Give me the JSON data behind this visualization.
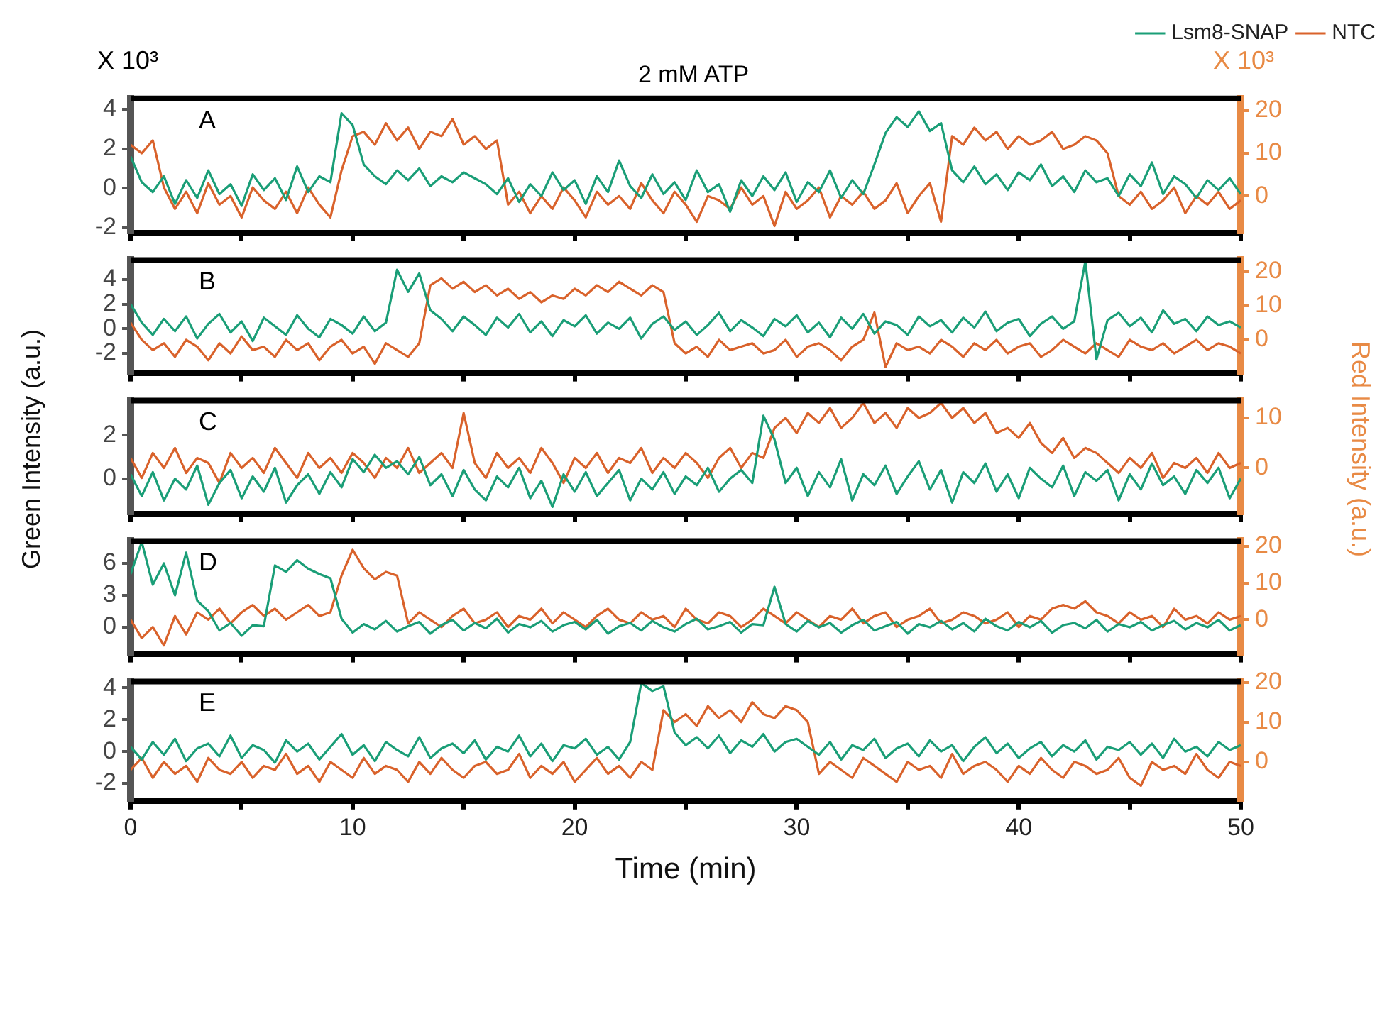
{
  "chart_data": [
    {
      "type": "line",
      "title": "2 mM ATP",
      "legend": "top right",
      "annotations": [
        "A",
        "X 10³",
        "X 10³"
      ],
      "tick_labels": "y",
      "x": [
        0,
        0.5,
        1,
        1.5,
        2,
        2.5,
        3,
        3.5,
        4,
        4.5,
        5,
        5.5,
        6,
        6.5,
        7,
        7.5,
        8,
        8.5,
        9,
        9.5,
        10,
        10.5,
        11,
        11.5,
        12,
        12.5,
        13,
        13.5,
        14,
        14.5,
        15,
        15.5,
        16,
        16.5,
        17,
        17.5,
        18,
        18.5,
        19,
        19.5,
        20,
        20.5,
        21,
        21.5,
        22,
        22.5,
        23,
        23.5,
        24,
        24.5,
        25,
        25.5,
        26,
        26.5,
        27,
        27.5,
        28,
        28.5,
        29,
        29.5,
        30,
        30.5,
        31,
        31.5,
        32,
        32.5,
        33,
        33.5,
        34,
        34.5,
        35,
        35.5,
        36,
        36.5,
        37,
        37.5,
        38,
        38.5,
        39,
        39.5,
        40,
        40.5,
        41,
        41.5,
        42,
        42.5,
        43,
        43.5,
        44,
        44.5,
        45,
        45.5,
        46,
        46.5,
        47,
        47.5,
        48,
        48.5,
        49,
        49.5,
        50
      ],
      "xlim": [
        0,
        50
      ],
      "xticks": [
        0,
        {
          "value": 5,
          "label": null
        },
        10,
        {
          "value": 15,
          "label": null
        },
        20,
        {
          "value": 25,
          "label": null
        },
        30,
        {
          "value": 35,
          "label": null
        },
        40,
        {
          "value": 45,
          "label": null
        },
        50
      ],
      "ylim": [
        -2.25,
        4.55
      ],
      "yticks": [
        -2,
        0,
        2,
        4
      ],
      "y2lim": [
        -8.5,
        22.8
      ],
      "y2ticks": [
        0,
        10,
        20
      ],
      "series": [
        {
          "name": "Lsm8-SNAP",
          "color": "#1a9e77",
          "values": [
            1.6,
            0.3,
            -0.2,
            0.6,
            -0.8,
            0.4,
            -0.5,
            0.9,
            -0.3,
            0.2,
            -0.9,
            0.7,
            -0.1,
            0.5,
            -0.6,
            1.1,
            -0.2,
            0.6,
            0.3,
            3.8,
            3.2,
            1.2,
            0.6,
            0.2,
            0.9,
            0.4,
            1.0,
            0.1,
            0.6,
            0.3,
            0.8,
            0.5,
            0.2,
            -0.3,
            0.5,
            -0.7,
            0.2,
            -0.4,
            0.8,
            -0.1,
            0.4,
            -0.8,
            0.6,
            -0.2,
            1.4,
            0.1,
            -0.5,
            0.7,
            -0.3,
            0.3,
            -0.6,
            0.9,
            -0.2,
            0.2,
            -1.2,
            0.4,
            -0.4,
            0.6,
            -0.1,
            0.8,
            -0.7,
            0.3,
            -0.2,
            0.9,
            -0.5,
            0.4,
            -0.3,
            1.2,
            2.8,
            3.6,
            3.1,
            3.9,
            2.9,
            3.3,
            0.9,
            0.3,
            1.1,
            0.2,
            0.7,
            -0.1,
            0.8,
            0.4,
            1.2,
            0.1,
            0.6,
            -0.2,
            0.9,
            0.3,
            0.5,
            -0.4,
            0.7,
            0.1,
            1.3,
            -0.3,
            0.6,
            0.2,
            -0.5,
            0.4,
            -0.1,
            0.5,
            -0.3
          ]
        },
        {
          "name": "NTC",
          "color": "#d9622b",
          "axis": "y2",
          "values": [
            12,
            10,
            13,
            2,
            -3,
            1,
            -4,
            3,
            -2,
            0,
            -5,
            2,
            -1,
            -3,
            1,
            -4,
            2,
            -2,
            -5,
            6,
            14,
            15,
            12,
            17,
            13,
            16,
            11,
            15,
            14,
            18,
            12,
            14,
            11,
            13,
            -2,
            1,
            -4,
            0,
            -3,
            2,
            -1,
            -5,
            1,
            -2,
            0,
            -3,
            3,
            -1,
            -4,
            1,
            -2,
            -6,
            0,
            -1,
            -3,
            2,
            -2,
            0,
            -7,
            1,
            -3,
            -1,
            2,
            -5,
            0,
            -2,
            1,
            -3,
            -1,
            3,
            -4,
            0,
            3,
            -6,
            14,
            12,
            16,
            13,
            15,
            11,
            14,
            12,
            13,
            15,
            11,
            12,
            14,
            13,
            10,
            0,
            -2,
            1,
            -3,
            -1,
            2,
            -4,
            0,
            -2,
            1,
            -3,
            -1
          ]
        }
      ]
    },
    {
      "type": "line",
      "annotations": [
        "B"
      ],
      "tick_labels": "y",
      "x": [
        0,
        0.5,
        1,
        1.5,
        2,
        2.5,
        3,
        3.5,
        4,
        4.5,
        5,
        5.5,
        6,
        6.5,
        7,
        7.5,
        8,
        8.5,
        9,
        9.5,
        10,
        10.5,
        11,
        11.5,
        12,
        12.5,
        13,
        13.5,
        14,
        14.5,
        15,
        15.5,
        16,
        16.5,
        17,
        17.5,
        18,
        18.5,
        19,
        19.5,
        20,
        20.5,
        21,
        21.5,
        22,
        22.5,
        23,
        23.5,
        24,
        24.5,
        25,
        25.5,
        26,
        26.5,
        27,
        27.5,
        28,
        28.5,
        29,
        29.5,
        30,
        30.5,
        31,
        31.5,
        32,
        32.5,
        33,
        33.5,
        34,
        34.5,
        35,
        35.5,
        36,
        36.5,
        37,
        37.5,
        38,
        38.5,
        39,
        39.5,
        40,
        40.5,
        41,
        41.5,
        42,
        42.5,
        43,
        43.5,
        44,
        44.5,
        45,
        45.5,
        46,
        46.5,
        47,
        47.5,
        48,
        48.5,
        49,
        49.5,
        50
      ],
      "xlim": [
        0,
        50
      ],
      "xticks": [
        0,
        {
          "value": 5,
          "label": null
        },
        10,
        {
          "value": 15,
          "label": null
        },
        20,
        {
          "value": 25,
          "label": null
        },
        30,
        {
          "value": 35,
          "label": null
        },
        40,
        {
          "value": 45,
          "label": null
        },
        50
      ],
      "ylim": [
        -3.6,
        5.6
      ],
      "yticks": [
        -2,
        0,
        2,
        4
      ],
      "y2lim": [
        -9.7,
        23.4
      ],
      "y2ticks": [
        0,
        10,
        20
      ],
      "series": [
        {
          "color": "#1a9e77",
          "values": [
            2,
            0.5,
            -0.5,
            0.8,
            -0.2,
            1.0,
            -0.8,
            0.4,
            1.2,
            -0.3,
            0.6,
            -1.0,
            0.9,
            0.2,
            -0.5,
            1.1,
            0.0,
            -0.7,
            0.8,
            0.3,
            -0.4,
            1.0,
            -0.2,
            0.5,
            4.8,
            3.0,
            4.5,
            1.5,
            0.8,
            -0.2,
            1.0,
            0.3,
            -0.5,
            0.9,
            0.1,
            1.2,
            -0.3,
            0.6,
            -0.6,
            0.7,
            0.2,
            1.1,
            -0.4,
            0.5,
            0.0,
            0.9,
            -0.8,
            0.4,
            1.0,
            -0.1,
            0.6,
            -0.5,
            0.3,
            1.3,
            -0.2,
            0.7,
            0.1,
            -0.6,
            0.8,
            0.2,
            1.1,
            -0.3,
            0.5,
            -0.7,
            0.9,
            0.0,
            1.2,
            -0.4,
            0.6,
            0.3,
            -0.5,
            1.0,
            0.2,
            0.7,
            -0.3,
            0.9,
            0.1,
            1.4,
            -0.2,
            0.5,
            0.8,
            -0.6,
            0.4,
            1.0,
            0.0,
            0.6,
            5.5,
            -2.5,
            0.7,
            1.3,
            0.2,
            0.9,
            -0.3,
            1.5,
            0.4,
            0.8,
            -0.2,
            1.0,
            0.3,
            0.6,
            0.1
          ]
        },
        {
          "color": "#d9622b",
          "axis": "y2",
          "values": [
            5,
            0,
            -3,
            -1,
            -5,
            0,
            -2,
            -6,
            -1,
            -4,
            1,
            -3,
            -2,
            -5,
            0,
            -3,
            -1,
            -6,
            -2,
            0,
            -4,
            -2,
            -7,
            -1,
            -3,
            -5,
            -1,
            16,
            18,
            15,
            17,
            14,
            16,
            13,
            15,
            12,
            14,
            11,
            13,
            12,
            15,
            13,
            16,
            14,
            17,
            15,
            13,
            16,
            14,
            -1,
            -4,
            -2,
            -5,
            0,
            -3,
            -2,
            -1,
            -4,
            -3,
            0,
            -5,
            -2,
            -1,
            -3,
            -6,
            -2,
            0,
            8,
            -8,
            -1,
            -3,
            -2,
            -4,
            0,
            -2,
            -5,
            -1,
            -3,
            0,
            -4,
            -2,
            -1,
            -5,
            -3,
            0,
            -2,
            -4,
            -1,
            -3,
            -5,
            0,
            -2,
            -3,
            -1,
            -4,
            -2,
            0,
            -3,
            -1,
            -2,
            -4
          ]
        }
      ]
    },
    {
      "type": "line",
      "annotations": [
        "C"
      ],
      "tick_labels": "y",
      "ylabel": "Green Intensity (a.u.)",
      "y2label": "Red Intensity (a.u.)",
      "x": [
        0,
        0.5,
        1,
        1.5,
        2,
        2.5,
        3,
        3.5,
        4,
        4.5,
        5,
        5.5,
        6,
        6.5,
        7,
        7.5,
        8,
        8.5,
        9,
        9.5,
        10,
        10.5,
        11,
        11.5,
        12,
        12.5,
        13,
        13.5,
        14,
        14.5,
        15,
        15.5,
        16,
        16.5,
        17,
        17.5,
        18,
        18.5,
        19,
        19.5,
        20,
        20.5,
        21,
        21.5,
        22,
        22.5,
        23,
        23.5,
        24,
        24.5,
        25,
        25.5,
        26,
        26.5,
        27,
        27.5,
        28,
        28.5,
        29,
        29.5,
        30,
        30.5,
        31,
        31.5,
        32,
        32.5,
        33,
        33.5,
        34,
        34.5,
        35,
        35.5,
        36,
        36.5,
        37,
        37.5,
        38,
        38.5,
        39,
        39.5,
        40,
        40.5,
        41,
        41.5,
        42,
        42.5,
        43,
        43.5,
        44,
        44.5,
        45,
        45.5,
        46,
        46.5,
        47,
        47.5,
        48,
        48.5,
        49,
        49.5,
        50
      ],
      "xlim": [
        0,
        50
      ],
      "xticks": [
        0,
        {
          "value": 5,
          "label": null
        },
        10,
        {
          "value": 15,
          "label": null
        },
        20,
        {
          "value": 25,
          "label": null
        },
        30,
        {
          "value": 35,
          "label": null
        },
        40,
        {
          "value": 45,
          "label": null
        },
        50
      ],
      "ylim": [
        -1.6,
        3.6
      ],
      "yticks": [
        0,
        2
      ],
      "y2lim": [
        -9.1,
        13.5
      ],
      "y2ticks": [
        0,
        10
      ],
      "series": [
        {
          "color": "#1a9e77",
          "values": [
            0.2,
            -0.8,
            0.3,
            -1.0,
            0.0,
            -0.5,
            0.6,
            -1.2,
            -0.2,
            0.4,
            -0.9,
            0.1,
            -0.6,
            0.5,
            -1.1,
            -0.3,
            0.2,
            -0.7,
            0.3,
            -0.4,
            0.9,
            0.3,
            1.1,
            0.5,
            0.8,
            0.2,
            1.0,
            -0.3,
            0.2,
            -0.8,
            0.4,
            -0.5,
            -1.0,
            0.1,
            -0.4,
            0.5,
            -0.9,
            -0.1,
            -1.3,
            0.2,
            -0.6,
            0.3,
            -0.8,
            -0.2,
            0.4,
            -1.0,
            0.0,
            -0.5,
            0.3,
            -0.7,
            0.1,
            -0.3,
            0.5,
            -0.6,
            0.0,
            0.4,
            -0.2,
            2.9,
            1.8,
            -0.2,
            0.5,
            -0.8,
            0.3,
            -0.4,
            0.9,
            -1.0,
            0.2,
            -0.3,
            0.6,
            -0.7,
            0.1,
            0.8,
            -0.5,
            0.4,
            -1.1,
            0.3,
            -0.2,
            0.7,
            -0.6,
            0.2,
            -0.9,
            0.5,
            0.0,
            -0.4,
            0.6,
            -0.8,
            0.3,
            -0.1,
            0.4,
            -1.0,
            0.2,
            -0.5,
            0.7,
            -0.3,
            0.1,
            -0.7,
            0.4,
            -0.2,
            0.5,
            -0.9,
            0.0
          ]
        },
        {
          "color": "#d9622b",
          "axis": "y2",
          "values": [
            2,
            -2,
            3,
            0,
            4,
            -1,
            2,
            1,
            -3,
            3,
            0,
            2,
            -1,
            4,
            1,
            -2,
            3,
            0,
            2,
            -1,
            3,
            1,
            -2,
            2,
            0,
            4,
            -1,
            1,
            3,
            0,
            11,
            1,
            -2,
            3,
            0,
            2,
            -1,
            4,
            1,
            -3,
            2,
            0,
            3,
            -1,
            2,
            1,
            4,
            -1,
            2,
            0,
            3,
            1,
            -2,
            2,
            4,
            0,
            3,
            2,
            8,
            10,
            7,
            11,
            9,
            12,
            8,
            10,
            13,
            9,
            11,
            8,
            12,
            10,
            11,
            13,
            10,
            12,
            9,
            11,
            7,
            8,
            6,
            9,
            5,
            3,
            6,
            2,
            4,
            3,
            1,
            -1,
            2,
            0,
            3,
            -2,
            1,
            0,
            2,
            -1,
            3,
            0,
            1
          ]
        }
      ]
    },
    {
      "type": "line",
      "annotations": [
        "D"
      ],
      "tick_labels": "y",
      "x": [
        0,
        0.5,
        1,
        1.5,
        2,
        2.5,
        3,
        3.5,
        4,
        4.5,
        5,
        5.5,
        6,
        6.5,
        7,
        7.5,
        8,
        8.5,
        9,
        9.5,
        10,
        10.5,
        11,
        11.5,
        12,
        12.5,
        13,
        13.5,
        14,
        14.5,
        15,
        15.5,
        16,
        16.5,
        17,
        17.5,
        18,
        18.5,
        19,
        19.5,
        20,
        20.5,
        21,
        21.5,
        22,
        22.5,
        23,
        23.5,
        24,
        24.5,
        25,
        25.5,
        26,
        26.5,
        27,
        27.5,
        28,
        28.5,
        29,
        29.5,
        30,
        30.5,
        31,
        31.5,
        32,
        32.5,
        33,
        33.5,
        34,
        34.5,
        35,
        35.5,
        36,
        36.5,
        37,
        37.5,
        38,
        38.5,
        39,
        39.5,
        40,
        40.5,
        41,
        41.5,
        42,
        42.5,
        43,
        43.5,
        44,
        44.5,
        45,
        45.5,
        46,
        46.5,
        47,
        47.5,
        48,
        48.5,
        49,
        49.5,
        50
      ],
      "xlim": [
        0,
        50
      ],
      "xticks": [
        0,
        {
          "value": 5,
          "label": null
        },
        10,
        {
          "value": 15,
          "label": null
        },
        20,
        {
          "value": 25,
          "label": null
        },
        30,
        {
          "value": 35,
          "label": null
        },
        40,
        {
          "value": 45,
          "label": null
        },
        50
      ],
      "ylim": [
        -2.5,
        8.1
      ],
      "yticks": [
        0,
        3,
        6
      ],
      "y2lim": [
        -9.3,
        21.4
      ],
      "y2ticks": [
        0,
        10,
        20
      ],
      "series": [
        {
          "color": "#1a9e77",
          "values": [
            5,
            8,
            4,
            6,
            3,
            7,
            2.5,
            1.5,
            -0.3,
            0.4,
            -0.8,
            0.2,
            0.1,
            5.8,
            5.2,
            6.3,
            5.5,
            5.0,
            4.6,
            0.8,
            -0.5,
            0.3,
            -0.2,
            0.6,
            -0.4,
            0.1,
            0.5,
            -0.6,
            0.2,
            0.7,
            -0.3,
            0.4,
            -0.1,
            0.8,
            -0.5,
            0.3,
            0.0,
            0.6,
            -0.4,
            0.2,
            0.5,
            -0.2,
            0.7,
            -0.6,
            0.1,
            0.4,
            -0.3,
            0.6,
            0.0,
            -0.4,
            0.3,
            0.8,
            -0.2,
            0.1,
            0.5,
            -0.5,
            0.3,
            0.2,
            3.8,
            0.3,
            -0.4,
            0.6,
            0.0,
            0.4,
            -0.5,
            0.2,
            0.7,
            -0.3,
            0.1,
            0.5,
            -0.6,
            0.3,
            0.0,
            0.6,
            -0.2,
            0.4,
            -0.4,
            0.8,
            0.1,
            -0.3,
            0.5,
            0.0,
            0.6,
            -0.5,
            0.2,
            0.4,
            -0.1,
            0.7,
            -0.4,
            0.3,
            0.0,
            0.5,
            -0.3,
            0.2,
            0.6,
            -0.2,
            0.4,
            0.0,
            0.7,
            -0.3,
            0.2
          ]
        },
        {
          "color": "#d9622b",
          "axis": "y2",
          "values": [
            0,
            -5,
            -2,
            -7,
            1,
            -4,
            2,
            0,
            3,
            -1,
            2,
            4,
            1,
            3,
            0,
            2,
            4,
            1,
            2,
            12,
            19,
            14,
            11,
            13,
            12,
            -1,
            2,
            0,
            -2,
            1,
            3,
            -1,
            0,
            2,
            -2,
            1,
            0,
            3,
            -1,
            2,
            0,
            -2,
            1,
            3,
            0,
            -1,
            2,
            0,
            1,
            -2,
            3,
            0,
            -1,
            2,
            1,
            -2,
            0,
            3,
            1,
            -1,
            2,
            0,
            -2,
            1,
            0,
            3,
            -1,
            1,
            2,
            -2,
            0,
            1,
            3,
            -1,
            0,
            2,
            1,
            -1,
            0,
            2,
            -2,
            1,
            0,
            3,
            4,
            3,
            5,
            2,
            1,
            -1,
            2,
            0,
            1,
            -2,
            3,
            0,
            1,
            -1,
            2,
            0,
            1
          ]
        }
      ]
    },
    {
      "type": "line",
      "annotations": [
        "E"
      ],
      "xlabel": "Time (min)",
      "x": [
        0,
        0.5,
        1,
        1.5,
        2,
        2.5,
        3,
        3.5,
        4,
        4.5,
        5,
        5.5,
        6,
        6.5,
        7,
        7.5,
        8,
        8.5,
        9,
        9.5,
        10,
        10.5,
        11,
        11.5,
        12,
        12.5,
        13,
        13.5,
        14,
        14.5,
        15,
        15.5,
        16,
        16.5,
        17,
        17.5,
        18,
        18.5,
        19,
        19.5,
        20,
        20.5,
        21,
        21.5,
        22,
        22.5,
        23,
        23.5,
        24,
        24.5,
        25,
        25.5,
        26,
        26.5,
        27,
        27.5,
        28,
        28.5,
        29,
        29.5,
        30,
        30.5,
        31,
        31.5,
        32,
        32.5,
        33,
        33.5,
        34,
        34.5,
        35,
        35.5,
        36,
        36.5,
        37,
        37.5,
        38,
        38.5,
        39,
        39.5,
        40,
        40.5,
        41,
        41.5,
        42,
        42.5,
        43,
        43.5,
        44,
        44.5,
        45,
        45.5,
        46,
        46.5,
        47,
        47.5,
        48,
        48.5,
        49,
        49.5,
        50
      ],
      "xlim": [
        0,
        50
      ],
      "xticks": [
        0,
        {
          "value": 5,
          "label": null
        },
        10,
        {
          "value": 15,
          "label": null
        },
        20,
        {
          "value": 25,
          "label": null
        },
        30,
        {
          "value": 35,
          "label": null
        },
        40,
        {
          "value": 45,
          "label": null
        },
        50
      ],
      "ylim": [
        -3.1,
        4.4
      ],
      "yticks": [
        -2,
        0,
        2,
        4
      ],
      "y2lim": [
        -9.8,
        20.2
      ],
      "y2ticks": [
        0,
        10,
        20
      ],
      "series": [
        {
          "color": "#1a9e77",
          "values": [
            0.3,
            -0.5,
            0.6,
            -0.2,
            0.8,
            -0.6,
            0.2,
            0.5,
            -0.3,
            1.0,
            -0.4,
            0.4,
            0.1,
            -0.7,
            0.7,
            0.0,
            0.5,
            -0.5,
            0.3,
            1.1,
            -0.2,
            0.4,
            -0.6,
            0.6,
            0.1,
            -0.3,
            0.9,
            -0.4,
            0.2,
            0.5,
            -0.1,
            0.7,
            -0.5,
            0.3,
            0.0,
            1.0,
            -0.3,
            0.5,
            -0.6,
            0.4,
            0.2,
            0.8,
            -0.2,
            0.3,
            -0.5,
            0.6,
            4.3,
            3.8,
            4.1,
            1.2,
            0.4,
            0.9,
            0.2,
            1.0,
            -0.1,
            0.7,
            0.3,
            1.1,
            0.0,
            0.6,
            0.8,
            0.3,
            -0.2,
            0.6,
            -0.5,
            0.4,
            0.1,
            0.8,
            -0.4,
            0.2,
            0.5,
            -0.3,
            0.7,
            0.0,
            0.4,
            -0.6,
            0.3,
            0.9,
            -0.1,
            0.5,
            -0.4,
            0.2,
            0.6,
            -0.3,
            0.4,
            0.0,
            0.7,
            -0.5,
            0.3,
            0.1,
            0.6,
            -0.2,
            0.5,
            -0.4,
            0.8,
            0.0,
            0.3,
            -0.3,
            0.6,
            0.1,
            0.4
          ]
        },
        {
          "color": "#d9622b",
          "axis": "y2",
          "values": [
            -2,
            1,
            -4,
            0,
            -3,
            -1,
            -5,
            1,
            -2,
            -3,
            0,
            -4,
            -1,
            -2,
            2,
            -3,
            -1,
            -5,
            0,
            -2,
            -4,
            1,
            -3,
            -1,
            -2,
            -5,
            0,
            -3,
            1,
            -2,
            -4,
            -1,
            0,
            -3,
            -2,
            2,
            -4,
            -1,
            -3,
            0,
            -5,
            -2,
            1,
            -3,
            -1,
            -4,
            0,
            -2,
            13,
            10,
            12,
            9,
            14,
            11,
            13,
            10,
            15,
            12,
            11,
            14,
            13,
            10,
            -3,
            0,
            -2,
            -4,
            1,
            -1,
            -3,
            -5,
            0,
            -2,
            -1,
            -4,
            2,
            -3,
            -1,
            0,
            -2,
            -5,
            -1,
            -3,
            1,
            -2,
            -4,
            0,
            -1,
            -3,
            -2,
            1,
            -4,
            -6,
            0,
            -2,
            -1,
            -3,
            2,
            -2,
            -4,
            0,
            -1
          ]
        }
      ]
    }
  ]
}
